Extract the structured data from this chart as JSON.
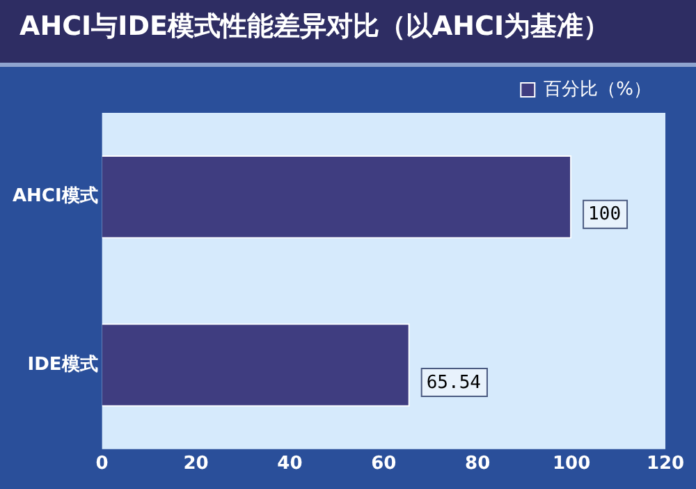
{
  "chart_data": {
    "type": "bar",
    "orientation": "horizontal",
    "title": "AHCI与IDE模式性能差异对比（以AHCI为基准）",
    "categories": [
      "AHCI模式",
      "IDE模式"
    ],
    "series": [
      {
        "name": "百分比（%）",
        "color": "#3f3d80",
        "values": [
          100,
          65.54
        ]
      }
    ],
    "xlim": [
      0,
      120
    ],
    "xticks": [
      0,
      20,
      40,
      60,
      80,
      100,
      120
    ],
    "grid": false,
    "legend": "top right",
    "data_labels": true
  }
}
